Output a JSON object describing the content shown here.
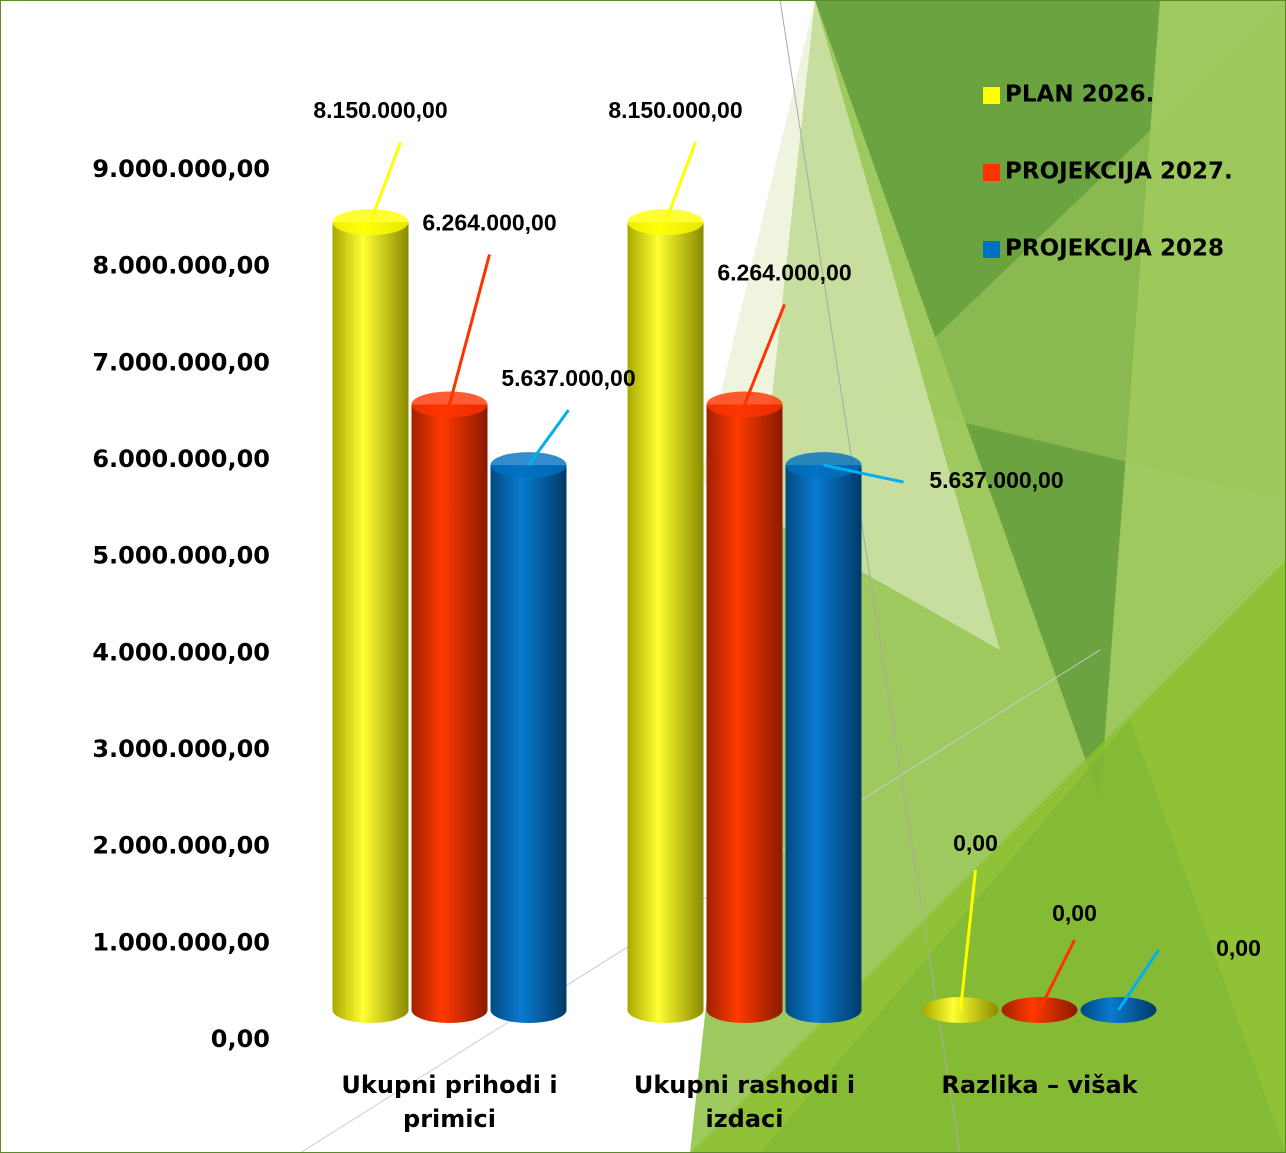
{
  "chart_data": {
    "type": "bar",
    "categories": [
      "Ukupni prihodi i primici",
      "Ukupni rashodi i izdaci",
      "Razlika – višak"
    ],
    "series": [
      {
        "name": "PLAN 2026.",
        "color": "#ffff00",
        "values": [
          8150000,
          8150000,
          0
        ],
        "value_labels": [
          "8.150.000,00",
          "8.150.000,00",
          "0,00"
        ]
      },
      {
        "name": "PROJEKCIJA 2027.",
        "color": "#ff3300",
        "values": [
          6264000,
          6264000,
          0
        ],
        "value_labels": [
          "6.264.000,00",
          "6.264.000,00",
          "0,00"
        ]
      },
      {
        "name": "PROJEKCIJA 2028",
        "color": "#0070c0",
        "values": [
          5637000,
          5637000,
          0
        ],
        "value_labels": [
          "5.637.000,00",
          "5.637.000,00",
          "0,00"
        ]
      }
    ],
    "ylim": [
      0,
      9000000
    ],
    "yticks": [
      {
        "value": 0,
        "label": "0,00"
      },
      {
        "value": 1000000,
        "label": "1.000.000,00"
      },
      {
        "value": 2000000,
        "label": "2.000.000,00"
      },
      {
        "value": 3000000,
        "label": "3.000.000,00"
      },
      {
        "value": 4000000,
        "label": "4.000.000,00"
      },
      {
        "value": 5000000,
        "label": "5.000.000,00"
      },
      {
        "value": 6000000,
        "label": "6.000.000,00"
      },
      {
        "value": 7000000,
        "label": "7.000.000,00"
      },
      {
        "value": 8000000,
        "label": "8.000.000,00"
      },
      {
        "value": 9000000,
        "label": "9.000.000,00"
      }
    ],
    "legend": "top-right"
  }
}
